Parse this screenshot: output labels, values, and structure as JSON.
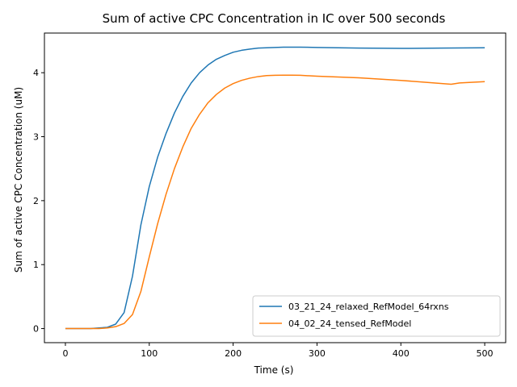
{
  "chart_data": {
    "type": "line",
    "title": "Sum of active CPC Concentration in IC over 500 seconds",
    "xlabel": "Time (s)",
    "ylabel": "Sum of active CPC Concentration (uM)",
    "xlim": [
      -25,
      525
    ],
    "ylim": [
      -0.22,
      4.62
    ],
    "xticks": [
      0,
      100,
      200,
      300,
      400,
      500
    ],
    "yticks": [
      0,
      1,
      2,
      3,
      4
    ],
    "grid": false,
    "legend_position": "lower-right",
    "series": [
      {
        "name": "03_21_24_relaxed_RefModel_64rxns",
        "color": "#1f77b4",
        "x": [
          0,
          10,
          20,
          30,
          40,
          50,
          60,
          70,
          80,
          90,
          100,
          110,
          120,
          130,
          140,
          150,
          160,
          170,
          180,
          190,
          200,
          210,
          220,
          230,
          240,
          250,
          260,
          270,
          280,
          300,
          350,
          400,
          450,
          500
        ],
        "y": [
          0,
          0,
          0,
          0,
          0.01,
          0.02,
          0.07,
          0.25,
          0.82,
          1.62,
          2.22,
          2.68,
          3.05,
          3.37,
          3.63,
          3.84,
          4.0,
          4.12,
          4.21,
          4.27,
          4.32,
          4.35,
          4.37,
          4.385,
          4.39,
          4.395,
          4.4,
          4.4,
          4.4,
          4.395,
          4.385,
          4.38,
          4.385,
          4.39
        ]
      },
      {
        "name": "04_02_24_tensed_RefModel",
        "color": "#ff7f0e",
        "x": [
          0,
          10,
          20,
          30,
          40,
          50,
          60,
          70,
          80,
          90,
          100,
          110,
          120,
          130,
          140,
          150,
          160,
          170,
          180,
          190,
          200,
          210,
          220,
          230,
          240,
          250,
          260,
          270,
          280,
          300,
          350,
          400,
          460,
          470,
          500
        ],
        "y": [
          0,
          0,
          0,
          0,
          0,
          0.01,
          0.03,
          0.08,
          0.22,
          0.58,
          1.12,
          1.64,
          2.1,
          2.5,
          2.84,
          3.13,
          3.35,
          3.53,
          3.66,
          3.76,
          3.83,
          3.88,
          3.915,
          3.94,
          3.955,
          3.96,
          3.962,
          3.962,
          3.96,
          3.945,
          3.92,
          3.88,
          3.82,
          3.84,
          3.86
        ]
      }
    ]
  }
}
